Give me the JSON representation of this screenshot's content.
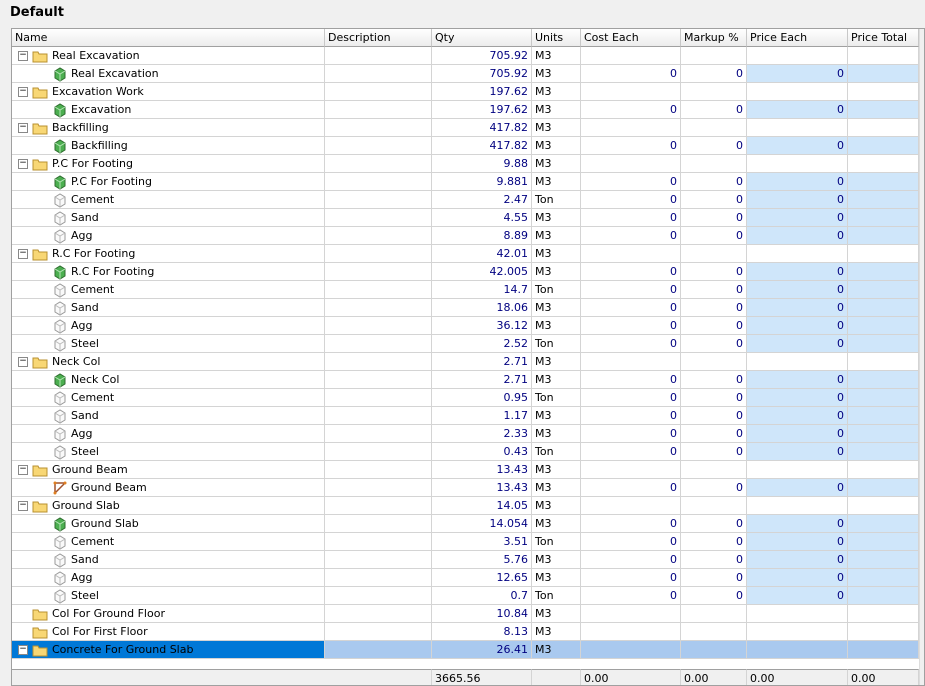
{
  "header": {
    "title": "Default"
  },
  "table": {
    "columns": [
      "Name",
      "Description",
      "Qty",
      "Units",
      "Cost Each",
      "Markup %",
      "Price Each",
      "Price Total"
    ],
    "rows": [
      {
        "icon": "folder",
        "expanded": true,
        "name": "Real Excavation",
        "qty": "705.92",
        "units": "M3"
      },
      {
        "icon": "cube",
        "name": "Real Excavation",
        "qty": "705.92",
        "units": "M3",
        "cost": "0",
        "markup": "0",
        "price": "0"
      },
      {
        "icon": "folder",
        "expanded": true,
        "name": "Excavation Work",
        "qty": "197.62",
        "units": "M3"
      },
      {
        "icon": "cube",
        "name": "Excavation",
        "qty": "197.62",
        "units": "M3",
        "cost": "0",
        "markup": "0",
        "price": "0"
      },
      {
        "icon": "folder",
        "expanded": true,
        "name": "Backfilling",
        "qty": "417.82",
        "units": "M3"
      },
      {
        "icon": "cube",
        "name": "Backfilling",
        "qty": "417.82",
        "units": "M3",
        "cost": "0",
        "markup": "0",
        "price": "0"
      },
      {
        "icon": "folder",
        "expanded": true,
        "name": "P.C For Footing",
        "qty": "9.88",
        "units": "M3"
      },
      {
        "icon": "cube",
        "name": "P.C For Footing",
        "qty": "9.881",
        "units": "M3",
        "cost": "0",
        "markup": "0",
        "price": "0"
      },
      {
        "icon": "resource",
        "name": "Cement",
        "qty": "2.47",
        "units": "Ton",
        "cost": "0",
        "markup": "0",
        "price": "0"
      },
      {
        "icon": "resource",
        "name": "Sand",
        "qty": "4.55",
        "units": "M3",
        "cost": "0",
        "markup": "0",
        "price": "0"
      },
      {
        "icon": "resource",
        "name": "Agg",
        "qty": "8.89",
        "units": "M3",
        "cost": "0",
        "markup": "0",
        "price": "0"
      },
      {
        "icon": "folder",
        "expanded": true,
        "name": "R.C For Footing",
        "qty": "42.01",
        "units": "M3"
      },
      {
        "icon": "cube",
        "name": "R.C For Footing",
        "qty": "42.005",
        "units": "M3",
        "cost": "0",
        "markup": "0",
        "price": "0"
      },
      {
        "icon": "resource",
        "name": "Cement",
        "qty": "14.7",
        "units": "Ton",
        "cost": "0",
        "markup": "0",
        "price": "0"
      },
      {
        "icon": "resource",
        "name": "Sand",
        "qty": "18.06",
        "units": "M3",
        "cost": "0",
        "markup": "0",
        "price": "0"
      },
      {
        "icon": "resource",
        "name": "Agg",
        "qty": "36.12",
        "units": "M3",
        "cost": "0",
        "markup": "0",
        "price": "0"
      },
      {
        "icon": "resource",
        "name": "Steel",
        "qty": "2.52",
        "units": "Ton",
        "cost": "0",
        "markup": "0",
        "price": "0"
      },
      {
        "icon": "folder",
        "expanded": true,
        "name": "Neck Col",
        "qty": "2.71",
        "units": "M3"
      },
      {
        "icon": "cube",
        "name": "Neck Col",
        "qty": "2.71",
        "units": "M3",
        "cost": "0",
        "markup": "0",
        "price": "0"
      },
      {
        "icon": "resource",
        "name": "Cement",
        "qty": "0.95",
        "units": "Ton",
        "cost": "0",
        "markup": "0",
        "price": "0"
      },
      {
        "icon": "resource",
        "name": "Sand",
        "qty": "1.17",
        "units": "M3",
        "cost": "0",
        "markup": "0",
        "price": "0"
      },
      {
        "icon": "resource",
        "name": "Agg",
        "qty": "2.33",
        "units": "M3",
        "cost": "0",
        "markup": "0",
        "price": "0"
      },
      {
        "icon": "resource",
        "name": "Steel",
        "qty": "0.43",
        "units": "Ton",
        "cost": "0",
        "markup": "0",
        "price": "0"
      },
      {
        "icon": "folder",
        "expanded": true,
        "name": "Ground Beam",
        "qty": "13.43",
        "units": "M3"
      },
      {
        "icon": "beam",
        "name": "Ground Beam",
        "qty": "13.43",
        "units": "M3",
        "cost": "0",
        "markup": "0",
        "price": "0"
      },
      {
        "icon": "folder",
        "expanded": true,
        "name": "Ground Slab",
        "qty": "14.05",
        "units": "M3"
      },
      {
        "icon": "cube",
        "name": "Ground Slab",
        "qty": "14.054",
        "units": "M3",
        "cost": "0",
        "markup": "0",
        "price": "0"
      },
      {
        "icon": "resource",
        "name": "Cement",
        "qty": "3.51",
        "units": "Ton",
        "cost": "0",
        "markup": "0",
        "price": "0"
      },
      {
        "icon": "resource",
        "name": "Sand",
        "qty": "5.76",
        "units": "M3",
        "cost": "0",
        "markup": "0",
        "price": "0"
      },
      {
        "icon": "resource",
        "name": "Agg",
        "qty": "12.65",
        "units": "M3",
        "cost": "0",
        "markup": "0",
        "price": "0"
      },
      {
        "icon": "resource",
        "name": "Steel",
        "qty": "0.7",
        "units": "Ton",
        "cost": "0",
        "markup": "0",
        "price": "0"
      },
      {
        "icon": "folder",
        "name": "Col For Ground Floor",
        "qty": "10.84",
        "units": "M3"
      },
      {
        "icon": "folder",
        "name": "Col For First Floor",
        "qty": "8.13",
        "units": "M3"
      },
      {
        "icon": "folder",
        "expanded": true,
        "selected": true,
        "name": "Concrete For Ground Slab",
        "qty": "26.41",
        "units": "M3"
      }
    ],
    "footer": {
      "qty": "3665.56",
      "cost": "0.00",
      "markup": "0.00",
      "price": "0.00",
      "total": "0.00"
    }
  }
}
